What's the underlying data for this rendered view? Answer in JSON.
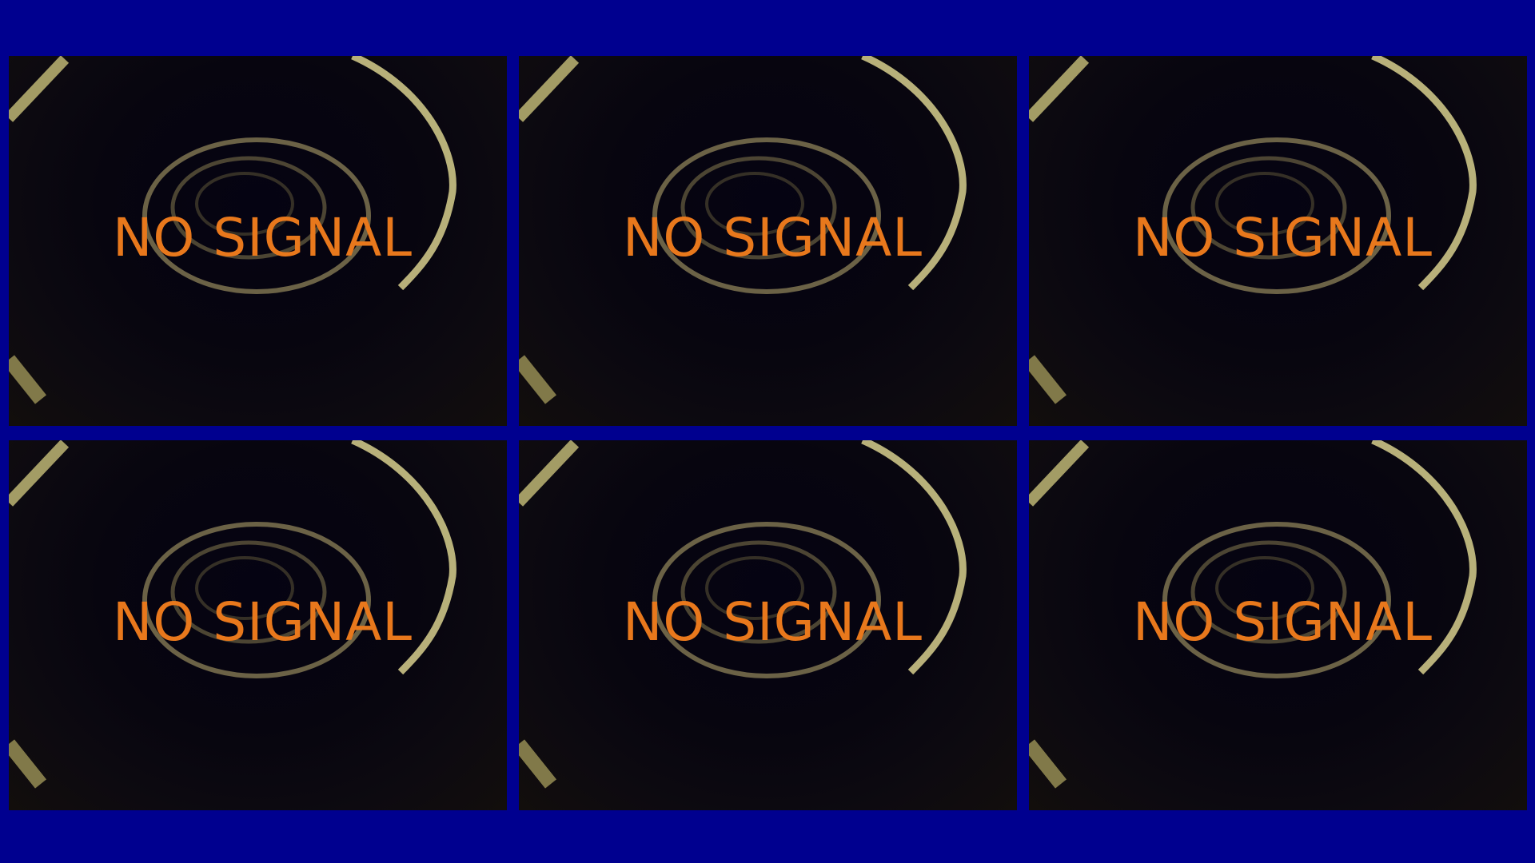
{
  "monitor": {
    "background_color": "#00008f",
    "label_color": "#e8781c",
    "feeds": [
      {
        "status": "NO SIGNAL"
      },
      {
        "status": "NO SIGNAL"
      },
      {
        "status": "NO SIGNAL"
      },
      {
        "status": "NO SIGNAL"
      },
      {
        "status": "NO SIGNAL"
      },
      {
        "status": "NO SIGNAL"
      }
    ]
  }
}
